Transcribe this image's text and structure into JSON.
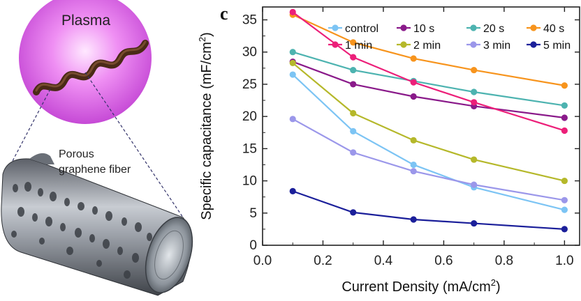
{
  "panel_letter": "c",
  "illustration": {
    "plasma_label": "Plasma",
    "fiber_label_line1": "Porous",
    "fiber_label_line2": "graphene fiber"
  },
  "chart_data": {
    "type": "line",
    "title": "",
    "xlabel": "Current Density (mA/cm",
    "xlabel_sup": "2",
    "xlabel_end": ")",
    "ylabel": "Specific capacitance (mF/cm",
    "ylabel_sup": "2",
    "ylabel_end": ")",
    "xlim": [
      0.0,
      1.05
    ],
    "ylim": [
      0,
      37
    ],
    "xticks": [
      0.0,
      0.2,
      0.4,
      0.6,
      0.8,
      1.0
    ],
    "xtick_labels": [
      "0.0",
      "0.2",
      "0.4",
      "0.6",
      "0.8",
      "1.0"
    ],
    "yticks": [
      0,
      5,
      10,
      15,
      20,
      25,
      30,
      35
    ],
    "ytick_labels": [
      "0",
      "5",
      "10",
      "15",
      "20",
      "25",
      "30",
      "35"
    ],
    "grid": false,
    "legend_position": "top",
    "x": [
      0.1,
      0.3,
      0.5,
      0.7,
      1.0
    ],
    "series": [
      {
        "name": "control",
        "color": "#7cc4f4",
        "values": [
          26.5,
          17.7,
          12.5,
          9.0,
          5.5
        ]
      },
      {
        "name": "10 s",
        "color": "#8a1a8a",
        "values": [
          28.5,
          25.0,
          23.1,
          21.6,
          19.8
        ]
      },
      {
        "name": "20 s",
        "color": "#4db3b0",
        "values": [
          30.0,
          27.2,
          25.5,
          23.8,
          21.7
        ]
      },
      {
        "name": "40 s",
        "color": "#f7941d",
        "values": [
          35.8,
          31.5,
          29.0,
          27.2,
          24.8
        ]
      },
      {
        "name": "1 min",
        "color": "#ec1f79",
        "values": [
          36.2,
          29.2,
          25.3,
          22.2,
          17.8
        ]
      },
      {
        "name": "2 min",
        "color": "#b5b82a",
        "values": [
          28.3,
          20.5,
          16.3,
          13.3,
          10.0
        ]
      },
      {
        "name": "3 min",
        "color": "#9b97ea",
        "values": [
          19.6,
          14.4,
          11.5,
          9.4,
          7.0
        ]
      },
      {
        "name": "5 min",
        "color": "#1b1f9a",
        "values": [
          8.4,
          5.1,
          4.0,
          3.4,
          2.5
        ]
      }
    ]
  }
}
